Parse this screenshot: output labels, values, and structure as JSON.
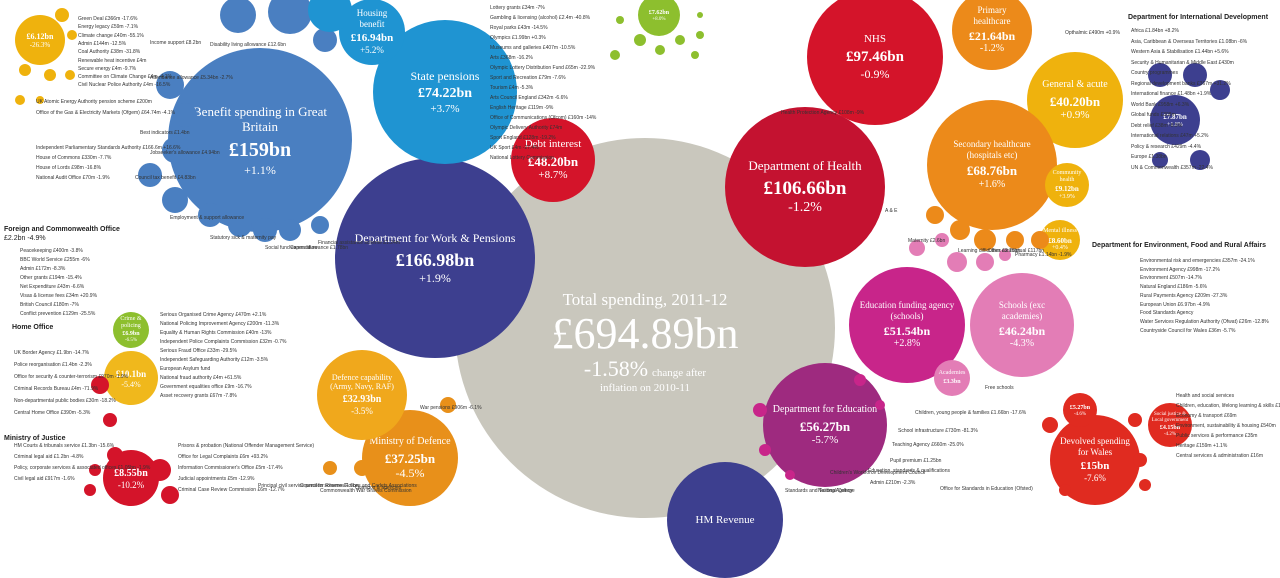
{
  "total": {
    "title": "Total spending, 2011-12",
    "value": "£694.89bn",
    "change": "-1.58%",
    "note": "change after",
    "note2": "inflation on 2010-11",
    "color": "#c9c7bd"
  },
  "section_headers": {
    "dfid": "Department for International Development",
    "fco": "Foreign and Commonwealth Office",
    "fco_value": "£2.2bn  -4.9%",
    "home": "Home Office",
    "justice": "Ministry of Justice",
    "defra": "Department for Environment, Food and Rural Affairs"
  },
  "chart_data": {
    "type": "bubble",
    "title": "Total spending, 2011-12",
    "total": {
      "value_bn": 694.89,
      "change_pct": -1.58
    },
    "bubbles": [
      {
        "id": "benefit",
        "name": "Benefit spending in Great Britain",
        "value": "£159bn",
        "change": "+1.1%",
        "value_bn": 159,
        "change_pct": 1.1,
        "color": "#4a7fc1"
      },
      {
        "id": "dwp",
        "name": "Department for Work & Pensions",
        "value": "£166.98bn",
        "change": "+1.9%",
        "value_bn": 166.98,
        "change_pct": 1.9,
        "color": "#3d3f8f"
      },
      {
        "id": "pensions",
        "name": "State pensions",
        "value": "£74.22bn",
        "change": "+3.7%",
        "value_bn": 74.22,
        "change_pct": 3.7,
        "color": "#1f94d2"
      },
      {
        "id": "housing",
        "name": "Housing benefit",
        "value": "£16.94bn",
        "change": "+5.2%",
        "value_bn": 16.94,
        "change_pct": 5.2,
        "color": "#1f94d2"
      },
      {
        "id": "debt",
        "name": "Debt interest",
        "value": "£48.20bn",
        "change": "+8.7%",
        "value_bn": 48.2,
        "change_pct": 8.7,
        "color": "#d4142a"
      },
      {
        "id": "doh",
        "name": "Department of Health",
        "value": "£106.66bn",
        "change": "-1.2%",
        "value_bn": 106.66,
        "change_pct": -1.2,
        "color": "#c41230"
      },
      {
        "id": "nhs",
        "name": "NHS",
        "value": "£97.46bn",
        "change": "-0.9%",
        "value_bn": 97.46,
        "change_pct": -0.9,
        "color": "#d4142a"
      },
      {
        "id": "primary",
        "name": "Primary healthcare",
        "value": "£21.64bn",
        "change": "-1.2%",
        "value_bn": 21.64,
        "change_pct": -1.2,
        "color": "#ec8a1a"
      },
      {
        "id": "general",
        "name": "General & acute",
        "value": "£40.20bn",
        "change": "+0.9%",
        "value_bn": 40.2,
        "change_pct": 0.9,
        "color": "#efb20d"
      },
      {
        "id": "secondary",
        "name": "Secondary healthcare (hospitals etc)",
        "value": "£68.76bn",
        "change": "+1.6%",
        "value_bn": 68.76,
        "change_pct": 1.6,
        "color": "#ec8a1a"
      },
      {
        "id": "community",
        "name": "Community health",
        "value": "£9.12bn",
        "change": "+3.9%",
        "value_bn": 9.12,
        "change_pct": 3.9,
        "color": "#efb20d"
      },
      {
        "id": "mental",
        "name": "Mental illness",
        "value": "£8.60bn",
        "change": "+0.4%",
        "value_bn": 8.6,
        "change_pct": 0.4,
        "color": "#efb20d"
      },
      {
        "id": "edufund",
        "name": "Education funding agency (schools)",
        "value": "£51.54bn",
        "change": "+2.8%",
        "value_bn": 51.54,
        "change_pct": 2.8,
        "color": "#c8258a"
      },
      {
        "id": "schools",
        "name": "Schools (exc academies)",
        "value": "£46.24bn",
        "change": "-4.3%",
        "value_bn": 46.24,
        "change_pct": -4.3,
        "color": "#e37db6"
      },
      {
        "id": "dfe",
        "name": "Department for Education",
        "value": "£56.27bn",
        "change": "-5.7%",
        "value_bn": 56.27,
        "change_pct": -5.7,
        "color": "#9e2a7f"
      },
      {
        "id": "academies",
        "name": "Academies",
        "value": "£3.3bn",
        "change": "",
        "value_bn": 3.3,
        "change_pct": null,
        "color": "#e37db6"
      },
      {
        "id": "mod",
        "name": "Ministry of Defence",
        "value": "£37.25bn",
        "change": "-4.5%",
        "value_bn": 37.25,
        "change_pct": -4.5,
        "color": "#e8901a"
      },
      {
        "id": "defcap",
        "name": "Defence capability (Army, Navy, RAF)",
        "value": "£32.93bn",
        "change": "-3.5%",
        "value_bn": 32.93,
        "change_pct": -3.5,
        "color": "#f0a81c"
      },
      {
        "id": "wales",
        "name": "Devolved spending for Wales",
        "value": "£15bn",
        "change": "-7.6%",
        "value_bn": 15,
        "change_pct": -7.6,
        "color": "#e02b20"
      },
      {
        "id": "dfid",
        "name": "",
        "value": "£7.87bn",
        "change": "+1.8%",
        "value_bn": 7.87,
        "change_pct": 1.8,
        "color": "#3d3f8f"
      },
      {
        "id": "home",
        "name": "",
        "value": "£10.1bn",
        "change": "-5.4%",
        "value_bn": 10.1,
        "change_pct": -5.4,
        "color": "#f0b81c"
      },
      {
        "id": "moj",
        "name": "",
        "value": "£8.55bn",
        "change": "-10.2%",
        "value_bn": 8.55,
        "change_pct": -10.2,
        "color": "#d4142a"
      },
      {
        "id": "crime",
        "name": "Crime & policing",
        "value": "£6.9bn",
        "change": "-6.5%",
        "value_bn": 6.9,
        "change_pct": -6.5,
        "color": "#8dbf2e"
      },
      {
        "id": "energy",
        "name": "",
        "value": "£6.12bn",
        "change": "-26.3%",
        "value_bn": 6.12,
        "change_pct": -26.3,
        "color": "#efb20d"
      },
      {
        "id": "hmrc",
        "name": "HM Revenue",
        "value": "",
        "change": "",
        "value_bn": null,
        "change_pct": null,
        "color": "#3d3f8f"
      },
      {
        "id": "culture",
        "name": "",
        "value": "£7.62bn",
        "change": "+8.0%",
        "value_bn": 7.62,
        "change_pct": 8.0,
        "color": "#8dbf2e"
      },
      {
        "id": "ssf",
        "name": "Social justice & Local government",
        "value": "£4.15bn",
        "change": "-4.2%",
        "value_bn": 4.15,
        "change_pct": -4.2,
        "color": "#e02b20"
      },
      {
        "id": "walesedu",
        "name": "",
        "value": "£5.27bn",
        "change": "-4.6%",
        "value_bn": 5.27,
        "change_pct": -4.6,
        "color": "#e02b20"
      }
    ]
  },
  "small_labels": {
    "energy_list": [
      "Green Deal £366m -17.6%",
      "Energy legacy £59m -7.1%",
      "Climate change £40m -55.1%",
      "Admin £144m -12.5%",
      "Coal Authority £38m -31.8%",
      "Renewable heat incentive £4m",
      "Secure energy £4m -9.7%",
      "Committee on Climate Change £4m -4.1%",
      "Civil Nuclear Police Authority £4m -16.5%"
    ],
    "ofgem": [
      "UK Atomic Energy Authority pension scheme £200m",
      "Office of the Gas & Electricity Markets (Ofgem) £64.74m -4.1%"
    ],
    "parliament": [
      "Independent Parliamentary Standards Authority £166.6m +16.6%",
      "House of Commons £330m -7.7%",
      "House of Lords £98m -16.8%",
      "National Audit Office £70m -1.9%"
    ],
    "fco_list": [
      "Peacekeeping £400m -3.8%",
      "BBC World Service £255m -6%",
      "Admin £172m -8.3%",
      "Other grants £194m -15.4%",
      "Net Expenditure £43m -6.6%",
      "Visas & license fees £34m +20.9%",
      "British Council £180m -7%",
      "Conflict prevention £129m -25.5%"
    ],
    "home_list": [
      "UK Border Agency £1.9bn -14.7%",
      "Police reorganisation £1.4bn -2.3%",
      "Office for security & counter-terrorism £970m -1.9%",
      "Criminal Records Bureau £4m -71.9%",
      "Non-departmental public bodies £30m -18.2%",
      "Central Home Office £390m -5.3%"
    ],
    "soca_list": [
      "Serious Organised Crime Agency £470m +2.1%",
      "National Policing Improvement Agency £200m -11.3%",
      "Equality & Human Rights Commission £40m -13%",
      "Independent Police Complaints Commission £32m -0.7%",
      "Serious Fraud Office £33m -29.5%",
      "Independent Safeguarding Authority £12m -3.5%",
      "European Asylum fund",
      "National fraud authority £4m +61.5%",
      "Government equalities office £9m -16.7%",
      "Asset recovery grants £67m -7.8%"
    ],
    "moj_list": [
      "HM Courts & tribunals service £1.3bn -15.6%",
      "Criminal legal aid £1.2bn -4.8%",
      "Policy, corporate services & associated offices £1.05bn -1.9%",
      "Civil legal aid £917m -1.6%"
    ],
    "moj_right": [
      "Prisons & probation (National Offender Management Service)",
      "Office for Legal Complaints £6m +93.2%",
      "Information Commissioner's Office £5m -17.4%",
      "Judicial appointments £5m -12.9%",
      "Criminal Case Review Commission £6m -12.7%"
    ],
    "dwp_small": [
      "Attendance allowance £5.34bn -2.7%",
      "Disability living allowance £12.6bn",
      "Income support £8.2bn",
      "Best indicators £1.4bn",
      "Jobseeker's allowance £4.94bn",
      "Council tax benefit £4.83bn",
      "Employment & support allowance",
      "Statutory sick & maternity pay",
      "Social fund expenditure",
      "Carers allowance £1.78bn",
      "Financial assistance scheme £1.24m"
    ],
    "culture_list": [
      "Lottery grants £34m -7%",
      "Gambling & licensing (alcohol) £2.4m -40.8%",
      "Royal parks £43m -14.5%",
      "Olympics £1.99bn +0.3%",
      "Museums and galleries £407m -10.5%",
      "Arts £368m -16.2%",
      "Olympic Lottery Distribution Fund £65m -22.9%",
      "Sport and Recreation £79m -7.6%",
      "Tourism £4m -5.3%",
      "Arts Council England £342m -6.6%",
      "English Heritage £119m -9%",
      "Office of Communications (Ofcom) £160m -14%",
      "Olympic Delivery Authority £74m",
      "Sport England £128m -19.2%",
      "UK Sport £4m -27.4%",
      "National Lottery Commission"
    ],
    "health_small": [
      "Health Protection Agency £108m -9%",
      "A & E",
      "Maternity £2.6bn",
      "Learning difficulties £2.78bn",
      "Other contractual £117bn",
      "Pharmacy £1.14bn -1.9%",
      "Opthalmic £490m +0.9%"
    ],
    "edu_small": [
      "Free schools",
      "Children, young people & families £1.66bn -17.6%",
      "School infrastructure £730m -81.3%",
      "Teaching Agency £660m -25.0%",
      "Pupil premium £1.25bn",
      "Admin £210m -2.3%",
      "Standards and Testing Agency",
      "National College",
      "Children's Workforce Development Council",
      "Education, standards & qualifications",
      "Office for Standards in Education (Ofsted)"
    ],
    "defence_small": [
      "War pensions £906m -6.1%",
      "Principal civil service pension scheme £1.6bn",
      "Council for Reserve Forces and Cadets Associations",
      "Commonwealth War Graves Commission",
      "Quangos & agencies"
    ],
    "dfid_list": [
      "Africa £1.84bn +8.2%",
      "Asia, Caribbean & Overseas Territories £1.08bn -6%",
      "Western Asia & Stabilisation £1.44bn +5.6%",
      "Security & Humanitarian & Middle East £430m",
      "Country programmes",
      "Regional development banks £367m +31.2%",
      "International finance £1.48bn +1.9%",
      "World Bank £958m +6.3%",
      "Global funds £308m",
      "Debt relief £38m -8.9%",
      "International relations £47m +5.2%",
      "Policy & research £429m -4.4%",
      "Europe £1.38bn",
      "UN & Commonwealth £357m -22.4%"
    ],
    "defra_list": [
      "Environmental risk and emergencies £357m -24.1%",
      "Environment Agency £998m -17.2%",
      "Environment £507m -14.7%",
      "Natural England £186m -5.6%",
      "Rural Payments Agency £209m -27.3%",
      "European Union £6.97bn -4.9%",
      "Food Standards Agency",
      "Water Services Regulation Authority (Ofwat) £26m -12.8%",
      "Countryside Council for Wales £36m -5.7%"
    ],
    "wales_list": [
      "Health and social services",
      "Children, education, lifelong learning & skills £1.9bn",
      "Economy & transport £69m",
      "Environment, sustainability & housing £540m",
      "Public services & performance £35m",
      "Heritage £159m +1.1%",
      "Central services & administration £16m"
    ]
  }
}
